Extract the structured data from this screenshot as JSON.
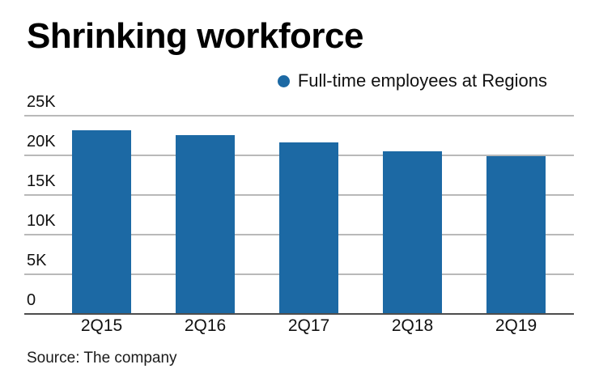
{
  "title": "Shrinking workforce",
  "legend": {
    "label": "Full-time employees at Regions"
  },
  "source": "Source: The company",
  "colors": {
    "bar": "#1c69a4",
    "gridline": "#b9b9b9",
    "axis": "#4d4d4d",
    "text": "#000000"
  },
  "chart_data": {
    "type": "bar",
    "title": "Shrinking workforce",
    "series_name": "Full-time employees at Regions",
    "categories": [
      "2Q15",
      "2Q16",
      "2Q17",
      "2Q18",
      "2Q19"
    ],
    "values": [
      23200,
      22600,
      21600,
      20500,
      19900
    ],
    "xlabel": "",
    "ylabel": "",
    "ylim": [
      0,
      25000
    ],
    "yticks": [
      {
        "value": 0,
        "label": "0"
      },
      {
        "value": 5000,
        "label": "5K"
      },
      {
        "value": 10000,
        "label": "10K"
      },
      {
        "value": 15000,
        "label": "15K"
      },
      {
        "value": 20000,
        "label": "20K"
      },
      {
        "value": 25000,
        "label": "25K"
      }
    ],
    "grid": "horizontal",
    "legend_position": "top-right",
    "source": "Source: The company"
  }
}
